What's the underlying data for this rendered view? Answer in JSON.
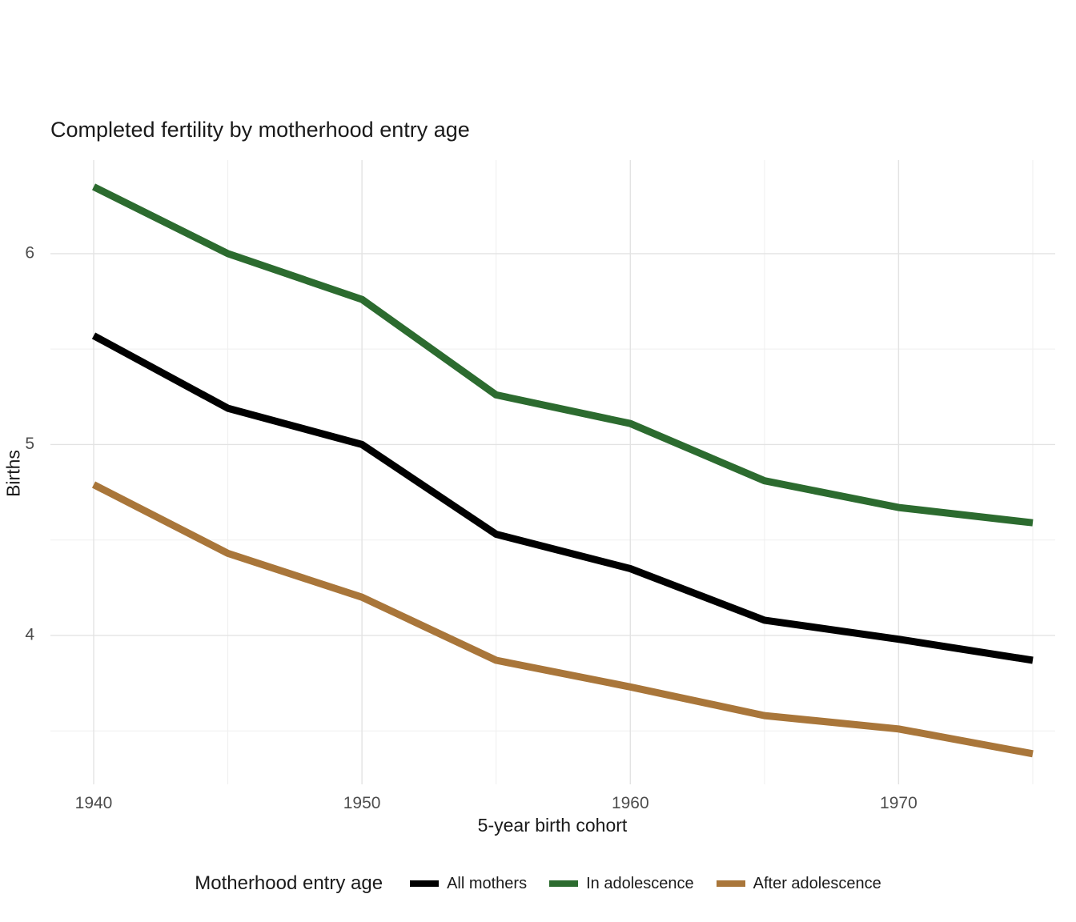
{
  "chart_data": {
    "type": "line",
    "title": "Completed fertility by motherhood entry age",
    "xlabel": "5-year birth cohort",
    "ylabel": "Births",
    "legend_title": "Motherhood entry age",
    "legend_position": "bottom",
    "grid": true,
    "x": [
      1940,
      1945,
      1950,
      1955,
      1960,
      1965,
      1970,
      1975
    ],
    "series": [
      {
        "name": "All mothers",
        "color": "#000000",
        "values": [
          5.57,
          5.19,
          5.0,
          4.53,
          4.35,
          4.08,
          3.98,
          3.87
        ]
      },
      {
        "name": "In adolescence",
        "color": "#2c6b2f",
        "values": [
          6.35,
          6.0,
          5.76,
          5.26,
          5.11,
          4.81,
          4.67,
          4.59
        ]
      },
      {
        "name": "After adolescence",
        "color": "#a9763a",
        "values": [
          4.79,
          4.43,
          4.2,
          3.87,
          3.73,
          3.58,
          3.51,
          3.38
        ]
      }
    ],
    "x_ticks": [
      1940,
      1950,
      1960,
      1970
    ],
    "x_minor_ticks": [
      1945,
      1955,
      1965,
      1975
    ],
    "y_ticks": [
      4,
      5,
      6
    ],
    "y_minor_ticks": [
      3.5,
      4.5,
      5.5
    ],
    "ylim": [
      3.22,
      6.49
    ],
    "xlim": [
      1940,
      1975
    ],
    "colors": {
      "major_grid": "#e3e3e3",
      "minor_grid": "#efefef",
      "tick_label": "#4d4d4d",
      "background": "#ffffff"
    }
  }
}
